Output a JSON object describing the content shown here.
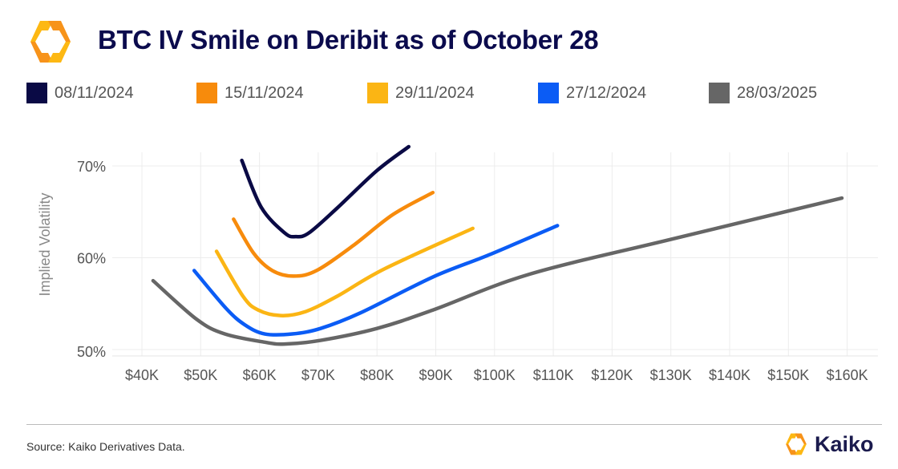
{
  "header": {
    "title": "BTC IV Smile on Deribit as of October 28"
  },
  "footer": {
    "source": "Source: Kaiko Derivatives Data.",
    "brand": "Kaiko"
  },
  "colors": {
    "title": "#0b0b4d",
    "brand_orange": "#f7931a",
    "brand_yellow": "#fdb813"
  },
  "chart_data": {
    "type": "line",
    "title": "BTC IV Smile on Deribit as of October 28",
    "xlabel": "",
    "ylabel": "Implied Volatility",
    "x_unit": "strike ($K)",
    "xlim": [
      40,
      160
    ],
    "ylim": [
      50,
      70
    ],
    "x_ticks": [
      40,
      50,
      60,
      70,
      80,
      90,
      100,
      110,
      120,
      130,
      140,
      150,
      160
    ],
    "x_tick_labels": [
      "$40K",
      "$50K",
      "$60K",
      "$70K",
      "$80K",
      "$90K",
      "$100K",
      "$110K",
      "$120K",
      "$130K",
      "$140K",
      "$150K",
      "$160K"
    ],
    "y_ticks": [
      50,
      60,
      70
    ],
    "y_tick_labels": [
      "50%",
      "60%",
      "70%"
    ],
    "grid": true,
    "legend_position": "top",
    "series": [
      {
        "name": "08/11/2024",
        "color": "#0a0a45",
        "x": [
          57.0,
          60.3,
          64.3,
          66.2,
          68.4,
          73.2,
          80.0,
          85.4
        ],
        "y": [
          70.6,
          65.5,
          62.7,
          62.3,
          62.7,
          65.4,
          69.5,
          72.1
        ]
      },
      {
        "name": "15/11/2024",
        "color": "#f78b0c",
        "x": [
          55.6,
          59.0,
          62.2,
          65.8,
          69.7,
          75.9,
          82.7,
          89.5
        ],
        "y": [
          64.2,
          60.5,
          58.6,
          58.0,
          58.6,
          61.3,
          64.7,
          67.1
        ]
      },
      {
        "name": "29/11/2024",
        "color": "#fbb514",
        "x": [
          52.7,
          57.2,
          59.8,
          63.6,
          67.7,
          73.2,
          81.3,
          96.3
        ],
        "y": [
          60.7,
          55.8,
          54.3,
          53.7,
          54.1,
          55.8,
          58.8,
          63.2
        ]
      },
      {
        "name": "27/12/2024",
        "color": "#0b5cf5",
        "x": [
          48.9,
          54.3,
          57.5,
          60.9,
          65.6,
          70.4,
          77.2,
          89.5,
          99.0,
          110.7
        ],
        "y": [
          58.6,
          54.5,
          52.7,
          51.7,
          51.7,
          52.3,
          54.0,
          57.9,
          60.3,
          63.5
        ]
      },
      {
        "name": "28/03/2025",
        "color": "#666666",
        "x": [
          41.9,
          49.3,
          54.1,
          60.9,
          64.3,
          70.4,
          80.0,
          89.5,
          105.9,
          130.0,
          159.1
        ],
        "y": [
          57.5,
          53.3,
          51.7,
          50.8,
          50.6,
          51.0,
          52.3,
          54.3,
          58.2,
          62.0,
          66.5
        ]
      }
    ]
  }
}
